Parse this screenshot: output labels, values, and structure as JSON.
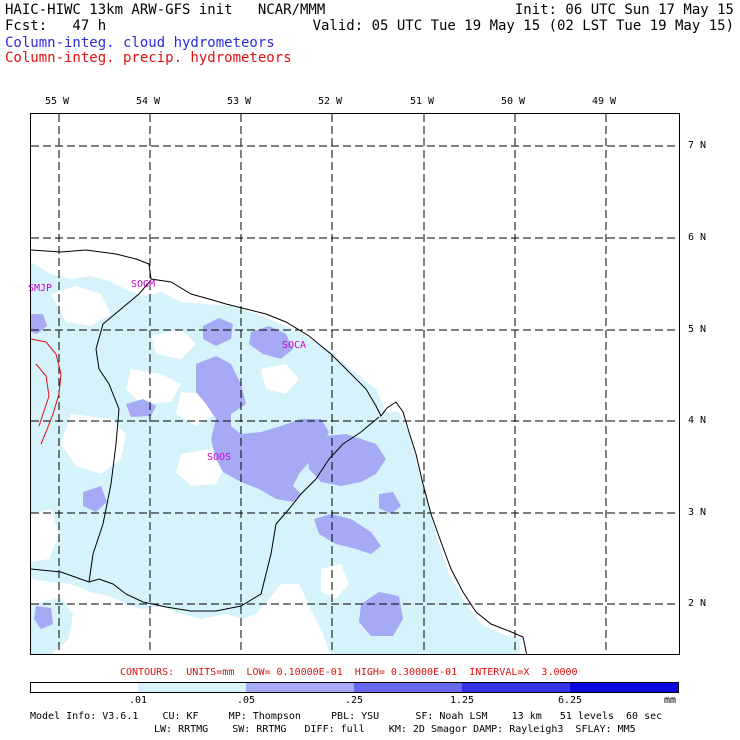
{
  "header": {
    "line1_left": "HAIC-HIWC 13km ARW-GFS init   NCAR/MMM",
    "line1_right": "Init: 06 UTC Sun 17 May 15",
    "line2_left": "Fcst:   47 h",
    "line2_right": "Valid: 05 UTC Tue 19 May 15 (02 LST Tue 19 May 15)",
    "field1": "Column-integ. cloud hydrometeors",
    "field2": "Column-integ. precip. hydrometeors"
  },
  "longitude_labels": [
    "55 W",
    "54 W",
    "53 W",
    "52 W",
    "51 W",
    "50 W",
    "49 W"
  ],
  "latitude_labels": [
    "7 N",
    "6 N",
    "5 N",
    "4 N",
    "3 N",
    "2 N"
  ],
  "stations": [
    "SMJP",
    "SOGM",
    "SOCA",
    "SOOS"
  ],
  "contours_text": "CONTOURS:  UNITS=mm  LOW= 0.10000E-01  HIGH= 0.30000E-01  INTERVAL=X  3.0000",
  "colorbar": {
    "ticks": [
      ".01",
      ".05",
      ".25",
      "1.25",
      "6.25"
    ],
    "units": "mm",
    "colors": [
      "#ffffff",
      "#d6f2fb",
      "#a6aaf5",
      "#6868ee",
      "#3434e6",
      "#0a0ae0"
    ]
  },
  "model_info": {
    "line1": "Model Info: V3.6.1    CU: KF     MP: Thompson     PBL: YSU      SF: Noah LSM    13 km   51 levels  60 sec",
    "line2": "LW: RRTMG    SW: RRTMG   DIFF: full    KM: 2D Smagor DAMP: Rayleigh3  SFLAY: MM5"
  },
  "colors": {
    "cloud_light": "#d6f2fb",
    "cloud_mid": "#a6aaf5",
    "precip_contour": "#e01010",
    "station_label": "#d000d0",
    "field1_title": "#2a2ae0",
    "field2_title": "#e01010"
  }
}
